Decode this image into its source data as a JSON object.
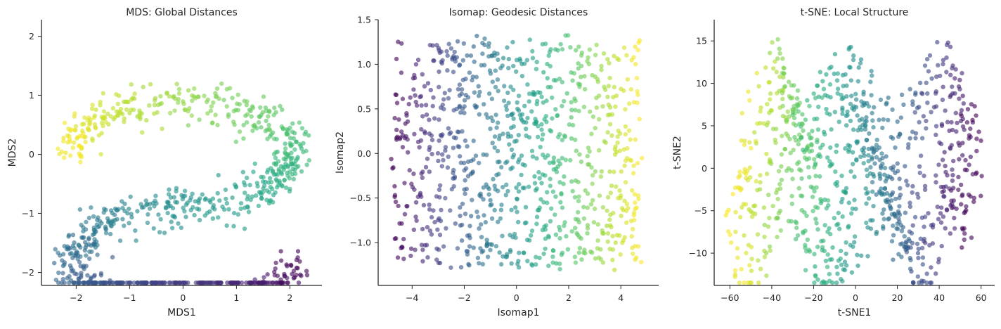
{
  "chart_data": [
    {
      "type": "scatter",
      "title": "MDS: Global Distances",
      "xlabel": "MDS1",
      "ylabel": "MDS2",
      "xlim": [
        -2.65,
        2.6
      ],
      "ylim": [
        -2.22,
        2.28
      ],
      "xticks": [
        -2,
        -1,
        0,
        1,
        2
      ],
      "yticks": [
        -2,
        -1,
        0,
        1,
        2
      ],
      "grid": false,
      "colormap": "viridis",
      "point_count": 900,
      "shape": "s-curve projected by MDS: upper arc opening right, lower arc opening left"
    },
    {
      "type": "scatter",
      "title": "Isomap: Geodesic Distances",
      "xlabel": "Isomap1",
      "ylabel": "Isomap2",
      "xlim": [
        -5.3,
        5.45
      ],
      "ylim": [
        -1.48,
        1.5
      ],
      "xticks": [
        -4,
        -2,
        0,
        2,
        4
      ],
      "yticks": [
        -1.0,
        -0.5,
        0.0,
        0.5,
        1.0,
        1.5
      ],
      "grid": false,
      "colormap": "viridis",
      "point_count": 900,
      "shape": "unrolled rectangular sheet, color gradient along Isomap1"
    },
    {
      "type": "scatter",
      "title": "t-SNE: Local Structure",
      "xlabel": "t-SNE1",
      "ylabel": "t-SNE2",
      "xlim": [
        -67.5,
        66.5
      ],
      "ylim": [
        -13.8,
        17.5
      ],
      "xticks": [
        -60,
        -40,
        -20,
        0,
        20,
        40,
        60
      ],
      "yticks": [
        -10,
        -5,
        0,
        5,
        10,
        15
      ],
      "grid": false,
      "colormap": "viridis",
      "point_count": 900,
      "shape": "wavy stripes spread across t-SNE1, color gradient right (purple) to left (yellow)"
    }
  ]
}
